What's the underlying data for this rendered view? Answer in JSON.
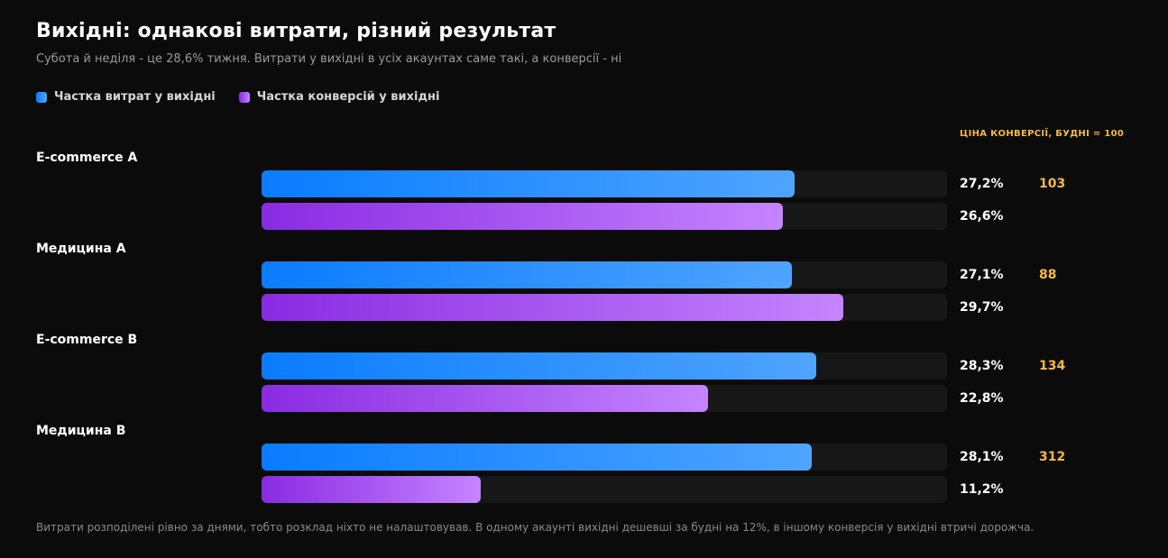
{
  "chart_data": {
    "type": "bar",
    "title": "Вихідні: однакові витрати, різний результат",
    "subtitle": "Субота й неділя - це 28,6% тижня. Витрати у вихідні в усіх акаунтах саме такі, а конверсії - ні",
    "value_header": "ЦІНА КОНВЕРСІЇ, БУДНІ = 100",
    "categories": [
      "E-commerce A",
      "Медицина A",
      "E-commerce B",
      "Медицина B"
    ],
    "series": [
      {
        "name": "Частка витрат у вихідні",
        "values": [
          27.2,
          27.1,
          28.3,
          28.1
        ],
        "labels": [
          "27,2%",
          "27,1%",
          "28,3%",
          "28,1%"
        ],
        "color": "#0a7cff"
      },
      {
        "name": "Частка конверсій у вихідні",
        "values": [
          26.6,
          29.7,
          22.8,
          11.2
        ],
        "labels": [
          "26,6%",
          "29,7%",
          "22,8%",
          "11,2%"
        ],
        "color": "#9b3ff0"
      }
    ],
    "conversion_cost_index": [
      "103",
      "88",
      "134",
      "312"
    ],
    "xlim": [
      0,
      35
    ],
    "legend": "top-left",
    "footnote": "Витрати розподілені рівно за днями, тобто розклад ніхто не налаштовував. В одному акаунті вихідні дешевші за будні на 12%, в іншому конверсія у вихідні втричі дорожча."
  }
}
